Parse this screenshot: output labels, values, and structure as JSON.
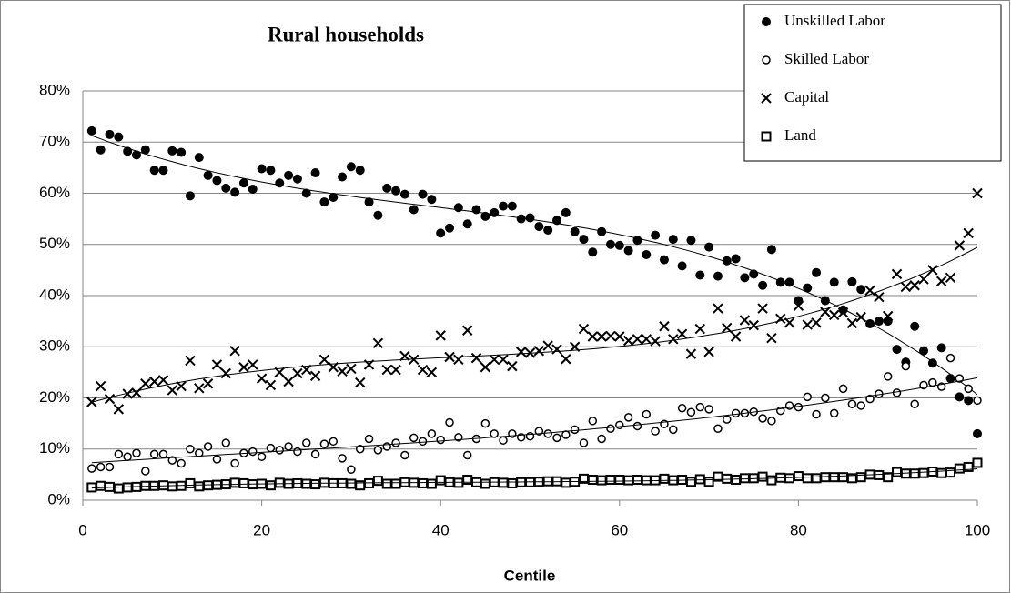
{
  "chart_data": {
    "type": "scatter",
    "title": "Rural households",
    "x_label": "Centile",
    "xlim": [
      0,
      100
    ],
    "xticks": [
      0,
      20,
      40,
      60,
      80,
      100
    ],
    "ylim": [
      0,
      80
    ],
    "yticks": [
      {
        "value": 0,
        "label": "0%"
      },
      {
        "value": 10,
        "label": "10%"
      },
      {
        "value": 20,
        "label": "20%"
      },
      {
        "value": 30,
        "label": "30%"
      },
      {
        "value": 40,
        "label": "40%"
      },
      {
        "value": 50,
        "label": "50%"
      },
      {
        "value": 60,
        "label": "60%"
      },
      {
        "value": 70,
        "label": "70%"
      },
      {
        "value": 80,
        "label": "80%"
      }
    ],
    "grid": true,
    "trendline": "polynomial",
    "legend": "top-right",
    "x": [
      1,
      2,
      3,
      4,
      5,
      6,
      7,
      8,
      9,
      10,
      11,
      12,
      13,
      14,
      15,
      16,
      17,
      18,
      19,
      20,
      21,
      22,
      23,
      24,
      25,
      26,
      27,
      28,
      29,
      30,
      31,
      32,
      33,
      34,
      35,
      36,
      37,
      38,
      39,
      40,
      41,
      42,
      43,
      44,
      45,
      46,
      47,
      48,
      49,
      50,
      51,
      52,
      53,
      54,
      55,
      56,
      57,
      58,
      59,
      60,
      61,
      62,
      63,
      64,
      65,
      66,
      67,
      68,
      69,
      70,
      71,
      72,
      73,
      74,
      75,
      76,
      77,
      78,
      79,
      80,
      81,
      82,
      83,
      84,
      85,
      86,
      87,
      88,
      89,
      90,
      91,
      92,
      93,
      94,
      95,
      96,
      97,
      98,
      99,
      100
    ],
    "series": [
      {
        "name": "Unskilled Labor",
        "color": "#000000",
        "marker": "filled-circle",
        "values": [
          72.2,
          68.5,
          71.5,
          71,
          68.2,
          67.5,
          68.5,
          64.5,
          64.5,
          68.3,
          68,
          59.5,
          67,
          63.5,
          62.5,
          61,
          60.2,
          62,
          60.8,
          64.8,
          64.5,
          62,
          63.5,
          62.8,
          60,
          64,
          58.3,
          59.2,
          63.2,
          65.2,
          64.5,
          58.3,
          55.7,
          61,
          60.5,
          59.8,
          56.8,
          59.8,
          58.8,
          52.2,
          53.2,
          57.2,
          54,
          56.8,
          55.5,
          56.2,
          57.5,
          57.5,
          55,
          55.2,
          53.5,
          52.8,
          54.7,
          56.2,
          52.5,
          51,
          48.5,
          52.5,
          50,
          49.8,
          48.8,
          50.8,
          48,
          51.8,
          47,
          51,
          45.8,
          50.8,
          44,
          49.5,
          43.8,
          46.8,
          47.2,
          43.5,
          44.2,
          42,
          49,
          42.6,
          42.6,
          39,
          41.5,
          44.5,
          39,
          42.6,
          37.2,
          42.7,
          41.2,
          34.5,
          35,
          35,
          29.5,
          27,
          34,
          29.2,
          26.8,
          29.8,
          23.8,
          20.2,
          19.5,
          13
        ]
      },
      {
        "name": "Skilled Labor",
        "color": "#000000",
        "marker": "open-circle",
        "values": [
          6.2,
          6.5,
          6.5,
          9,
          8.5,
          9.2,
          5.7,
          9,
          9,
          7.8,
          7.2,
          10,
          9.2,
          10.5,
          8,
          11.2,
          7.2,
          9.2,
          9.5,
          8.5,
          10.2,
          9.8,
          10.5,
          9.5,
          11.2,
          9,
          11,
          11.5,
          8.2,
          6,
          10,
          12,
          9.8,
          10.5,
          11.2,
          8.8,
          12.2,
          11.5,
          13,
          11.8,
          15.2,
          12.3,
          8.8,
          12,
          15,
          13,
          11.7,
          13,
          12.3,
          12.5,
          13.5,
          13,
          12.2,
          12.8,
          13.8,
          11.2,
          15.5,
          12,
          14,
          14.7,
          16.2,
          14.5,
          16.8,
          13.5,
          14.9,
          13.8,
          18,
          17.2,
          18.2,
          17.8,
          14,
          15.8,
          17,
          17,
          17.3,
          16,
          15.5,
          17.5,
          18.5,
          18.2,
          20.2,
          16.8,
          20,
          17,
          21.8,
          18.8,
          18.5,
          19.8,
          20.8,
          24.2,
          21,
          26.2,
          18.8,
          22.5,
          23,
          22.2,
          27.8,
          23.8,
          21.8,
          19.5
        ]
      },
      {
        "name": "Capital",
        "color": "#000000",
        "marker": "cross",
        "values": [
          19.2,
          22.3,
          19.8,
          17.8,
          20.8,
          21,
          22.8,
          23.2,
          23.5,
          21.5,
          22.3,
          27.3,
          21.9,
          22.8,
          26.5,
          24.8,
          29.2,
          26,
          26.5,
          23.8,
          22.5,
          25,
          23.2,
          24.8,
          25.5,
          24.3,
          27.5,
          26,
          25.2,
          25.7,
          23,
          26.5,
          30.7,
          25.5,
          25.5,
          28.2,
          27.5,
          25.5,
          25,
          32.2,
          28,
          27.5,
          33.2,
          27.8,
          26,
          27.5,
          27.5,
          26.2,
          29,
          28.8,
          29.2,
          30.2,
          29.5,
          27.6,
          30,
          33.5,
          32,
          32,
          32.1,
          32,
          31.2,
          31.5,
          31.5,
          31.1,
          34,
          31.5,
          32.5,
          28.6,
          33.5,
          29,
          37.5,
          33.7,
          32,
          35.2,
          34.2,
          37.5,
          31.7,
          35.5,
          34.7,
          38,
          34.3,
          34.7,
          36.8,
          36.2,
          36.7,
          34.6,
          35.8,
          41,
          39.7,
          36,
          44.2,
          41.7,
          42,
          43.2,
          45,
          42.8,
          43.5,
          49.8,
          52.2,
          60
        ]
      },
      {
        "name": "Land",
        "color": "#000000",
        "marker": "open-square",
        "values": [
          2.5,
          2.8,
          2.6,
          2.3,
          2.5,
          2.6,
          2.8,
          2.8,
          2.9,
          2.7,
          2.8,
          3.3,
          2.7,
          2.9,
          3,
          3.1,
          3.4,
          3.3,
          3.1,
          3.2,
          2.9,
          3.4,
          3.2,
          3.3,
          3.2,
          3.1,
          3.4,
          3.3,
          3.3,
          3.2,
          2.9,
          3.3,
          3.8,
          3.2,
          3.2,
          3.5,
          3.4,
          3.3,
          3.2,
          3.9,
          3.5,
          3.4,
          4,
          3.5,
          3.2,
          3.5,
          3.4,
          3.3,
          3.5,
          3.5,
          3.6,
          3.7,
          3.7,
          3.4,
          3.6,
          4.2,
          4,
          3.9,
          4,
          4,
          3.9,
          4,
          3.9,
          3.9,
          4.2,
          3.9,
          4,
          3.6,
          4.1,
          3.6,
          4.6,
          4.2,
          4,
          4.3,
          4.3,
          4.6,
          3.9,
          4.4,
          4.3,
          4.7,
          4.3,
          4.3,
          4.5,
          4.5,
          4.5,
          4.3,
          4.5,
          5,
          4.9,
          4.5,
          5.5,
          5.2,
          5.2,
          5.3,
          5.6,
          5.3,
          5.4,
          6.2,
          6.5,
          7.3
        ]
      }
    ]
  }
}
